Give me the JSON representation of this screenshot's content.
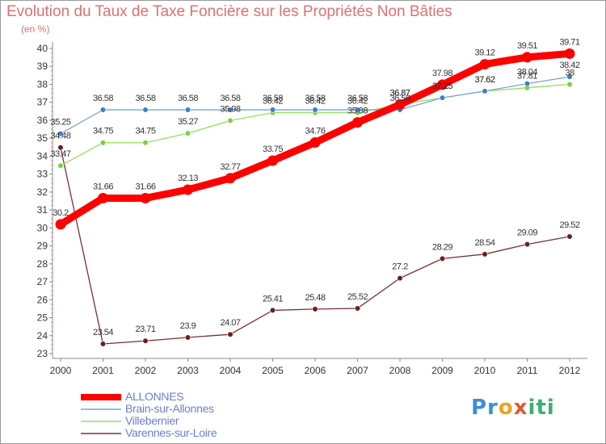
{
  "header": {
    "title": "Evolution du Taux de Taxe Foncière sur les Propriétés Non Bâties",
    "unit": "(en %)"
  },
  "logo": {
    "part1": "Pr",
    "part2": "o",
    "part3": "x",
    "part4": "iti"
  },
  "chart_data": {
    "type": "line",
    "title": "Evolution du Taux de Taxe Foncière sur les Propriétés Non Bâties",
    "ylabel": "(en %)",
    "xlabel": "",
    "categories": [
      "2000",
      "2001",
      "2002",
      "2003",
      "2004",
      "2005",
      "2006",
      "2007",
      "2008",
      "2009",
      "2010",
      "2011",
      "2012"
    ],
    "ylim": [
      23,
      40
    ],
    "yticks": [
      23,
      24,
      25,
      26,
      27,
      28,
      29,
      30,
      31,
      32,
      33,
      34,
      35,
      36,
      37,
      38,
      39,
      40
    ],
    "grid": false,
    "legend_position": "bottom-left",
    "series": [
      {
        "name": "ALLONNES",
        "color": "#ff0000",
        "marker_color": "#ff0000",
        "values": [
          30.2,
          31.66,
          31.66,
          32.13,
          32.77,
          33.75,
          34.76,
          35.88,
          36.87,
          37.98,
          39.12,
          39.51,
          39.71
        ],
        "labels": [
          "30.2",
          "31.66",
          "31.66",
          "32.13",
          "32.77",
          "33.75",
          "34.76",
          "35.88",
          "36.87",
          "37.98",
          "39.12",
          "39.51",
          "39.71"
        ]
      },
      {
        "name": "Brain-sur-Allonnes",
        "color": "#7aa4d8",
        "marker_color": "#3a7fc8",
        "values": [
          35.25,
          36.58,
          36.58,
          36.58,
          36.58,
          36.58,
          36.58,
          36.58,
          36.58,
          37.25,
          37.62,
          38.04,
          38.42
        ],
        "labels": [
          "35.25",
          "36.58",
          "36.58",
          "36.58",
          "36.58",
          "36.58",
          "36.58",
          "36.58",
          "36.58",
          "37.25",
          "37.62",
          "38.04",
          "38.42"
        ]
      },
      {
        "name": "Villebernier",
        "color": "#90e060",
        "marker_color": "#7cd040",
        "values": [
          33.47,
          34.75,
          34.75,
          35.27,
          35.98,
          36.42,
          36.42,
          36.42,
          36.87,
          37.25,
          37.62,
          37.81,
          38
        ],
        "labels": [
          "33.47",
          "34.75",
          "34.75",
          "35.27",
          "35.98",
          "36.42",
          "36.42",
          "36.42",
          "36.87",
          "37.25",
          "37.62",
          "37.81",
          "38"
        ]
      },
      {
        "name": "Varennes-sur-Loire",
        "color": "#7a3030",
        "marker_color": "#6a2020",
        "values": [
          34.48,
          23.54,
          23.71,
          23.9,
          24.07,
          25.41,
          25.48,
          25.52,
          27.2,
          28.29,
          28.54,
          29.09,
          29.52
        ],
        "labels": [
          "34.48",
          "23.54",
          "23.71",
          "23.9",
          "24.07",
          "25.41",
          "25.48",
          "25.52",
          "27.2",
          "28.29",
          "28.54",
          "29.09",
          "29.52"
        ]
      }
    ]
  }
}
